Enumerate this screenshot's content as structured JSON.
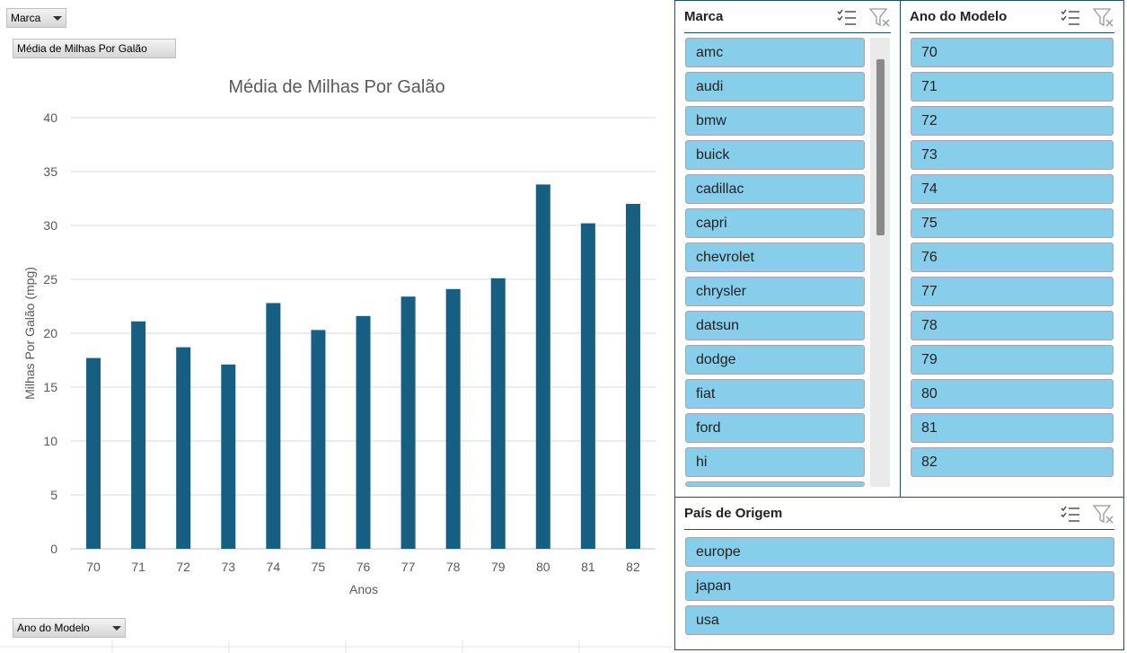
{
  "pivot_fields": {
    "filter_field": "Marca",
    "value_field": "Média de Milhas Por Galão",
    "axis_field": "Ano do Modelo"
  },
  "chart_data": {
    "type": "bar",
    "title": "Média de Milhas Por Galão",
    "xlabel": "Anos",
    "ylabel": "Milhas Por Galão (mpg)",
    "categories": [
      "70",
      "71",
      "72",
      "73",
      "74",
      "75",
      "76",
      "77",
      "78",
      "79",
      "80",
      "81",
      "82"
    ],
    "values": [
      17.7,
      21.1,
      18.7,
      17.1,
      22.8,
      20.3,
      21.6,
      23.4,
      24.1,
      25.1,
      33.8,
      30.2,
      32.0
    ],
    "ylim": [
      0,
      40
    ],
    "yticks": [
      0,
      5,
      10,
      15,
      20,
      25,
      30,
      35,
      40
    ],
    "grid": true,
    "bar_color": "#175e83"
  },
  "slicers": {
    "marca": {
      "title": "Marca",
      "items": [
        "amc",
        "audi",
        "bmw",
        "buick",
        "cadillac",
        "capri",
        "chevrolet",
        "chrysler",
        "datsun",
        "dodge",
        "fiat",
        "ford",
        "hi"
      ]
    },
    "ano": {
      "title": "Ano do Modelo",
      "items": [
        "70",
        "71",
        "72",
        "73",
        "74",
        "75",
        "76",
        "77",
        "78",
        "79",
        "80",
        "81",
        "82"
      ]
    },
    "pais": {
      "title": "País de Origem",
      "items": [
        "europe",
        "japan",
        "usa"
      ]
    }
  },
  "colors": {
    "slicer_item": "#87ceeb",
    "slicer_border": "#1f4e79"
  },
  "icons": [
    "multi-select-icon",
    "clear-filter-icon",
    "dropdown-arrow-icon"
  ]
}
